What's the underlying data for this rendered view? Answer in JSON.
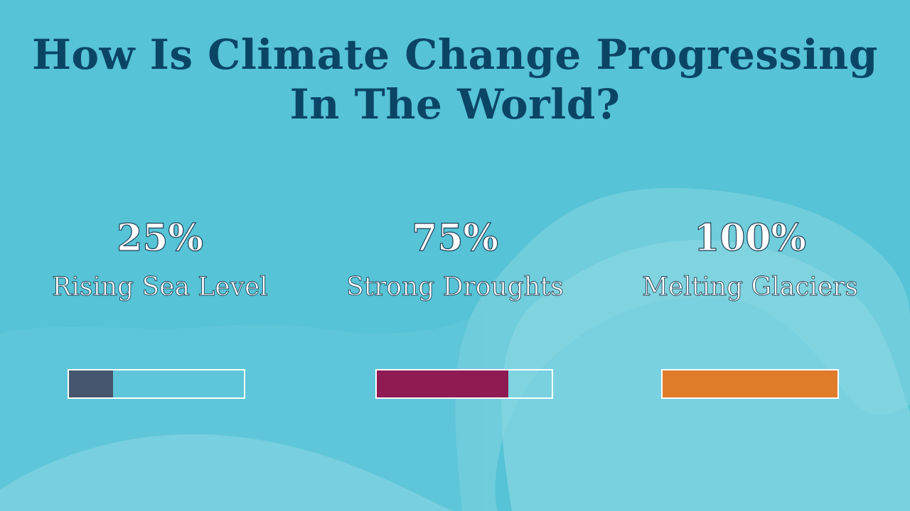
{
  "title": "How Is Climate Change Progressing In The World?",
  "colors": {
    "background": "#56c3d6",
    "wave_light": "#86d5e2",
    "title_color": "#0b4566",
    "bar_outline": "#ffffff"
  },
  "chart_data": {
    "type": "bar",
    "orientation": "horizontal-progress",
    "categories": [
      "Rising Sea Level",
      "Strong Droughts",
      "Melting Glaciers"
    ],
    "values": [
      25,
      75,
      100
    ],
    "value_labels": [
      "25%",
      "75%",
      "100%"
    ],
    "colors": [
      "#45566e",
      "#8e1b52",
      "#e07b2a"
    ],
    "ylim": [
      0,
      100
    ],
    "legend": "none",
    "grid": false
  }
}
